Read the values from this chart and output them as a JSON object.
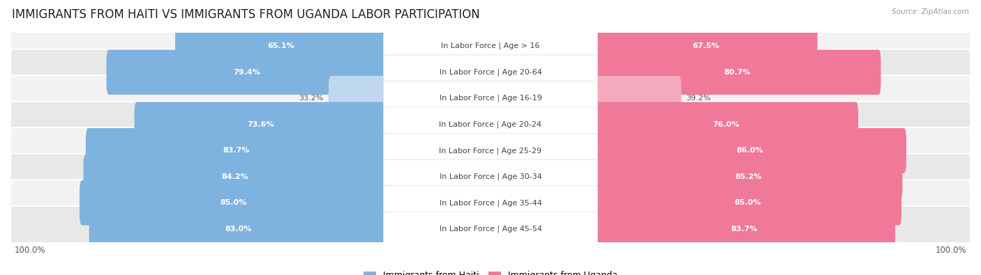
{
  "title": "IMMIGRANTS FROM HAITI VS IMMIGRANTS FROM UGANDA LABOR PARTICIPATION",
  "source": "Source: ZipAtlas.com",
  "categories": [
    "In Labor Force | Age > 16",
    "In Labor Force | Age 20-64",
    "In Labor Force | Age 16-19",
    "In Labor Force | Age 20-24",
    "In Labor Force | Age 25-29",
    "In Labor Force | Age 30-34",
    "In Labor Force | Age 35-44",
    "In Labor Force | Age 45-54"
  ],
  "haiti_values": [
    65.1,
    79.4,
    33.2,
    73.6,
    83.7,
    84.2,
    85.0,
    83.0
  ],
  "uganda_values": [
    67.5,
    80.7,
    39.2,
    76.0,
    86.0,
    85.2,
    85.0,
    83.7
  ],
  "haiti_color": "#7EB3DF",
  "haiti_color_light": "#C0D8EF",
  "uganda_color": "#F07898",
  "uganda_color_light": "#F5AABF",
  "row_bg_color_odd": "#F2F2F2",
  "row_bg_color_even": "#E8E8E8",
  "max_value": 100.0,
  "legend_haiti": "Immigrants from Haiti",
  "legend_uganda": "Immigrants from Uganda",
  "title_fontsize": 12,
  "label_fontsize": 8,
  "value_fontsize": 8
}
